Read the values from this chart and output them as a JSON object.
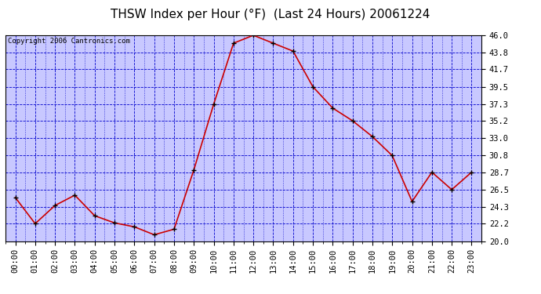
{
  "title": "THSW Index per Hour (°F)  (Last 24 Hours) 20061224",
  "copyright": "Copyright 2006 Cantronics.com",
  "hours": [
    0,
    1,
    2,
    3,
    4,
    5,
    6,
    7,
    8,
    9,
    10,
    11,
    12,
    13,
    14,
    15,
    16,
    17,
    18,
    19,
    20,
    21,
    22,
    23
  ],
  "values": [
    25.5,
    22.2,
    24.5,
    25.8,
    23.2,
    22.3,
    21.8,
    20.8,
    21.5,
    29.0,
    37.3,
    45.0,
    46.0,
    45.0,
    44.0,
    39.5,
    36.8,
    35.2,
    33.2,
    30.8,
    25.0,
    28.7,
    26.5,
    28.7
  ],
  "xlabel_hours": [
    "00:00",
    "01:00",
    "02:00",
    "03:00",
    "04:00",
    "05:00",
    "06:00",
    "07:00",
    "08:00",
    "09:00",
    "10:00",
    "11:00",
    "12:00",
    "13:00",
    "14:00",
    "15:00",
    "16:00",
    "17:00",
    "18:00",
    "19:00",
    "20:00",
    "21:00",
    "22:00",
    "23:00"
  ],
  "yticks": [
    20.0,
    22.2,
    24.3,
    26.5,
    28.7,
    30.8,
    33.0,
    35.2,
    37.3,
    39.5,
    41.7,
    43.8,
    46.0
  ],
  "ylim": [
    20.0,
    46.0
  ],
  "line_color": "#cc0000",
  "marker_color": "#000000",
  "plot_bg": "#c8c8ff",
  "grid_color": "#0000cc",
  "title_fontsize": 11,
  "copyright_fontsize": 6.5,
  "tick_fontsize": 7.5
}
